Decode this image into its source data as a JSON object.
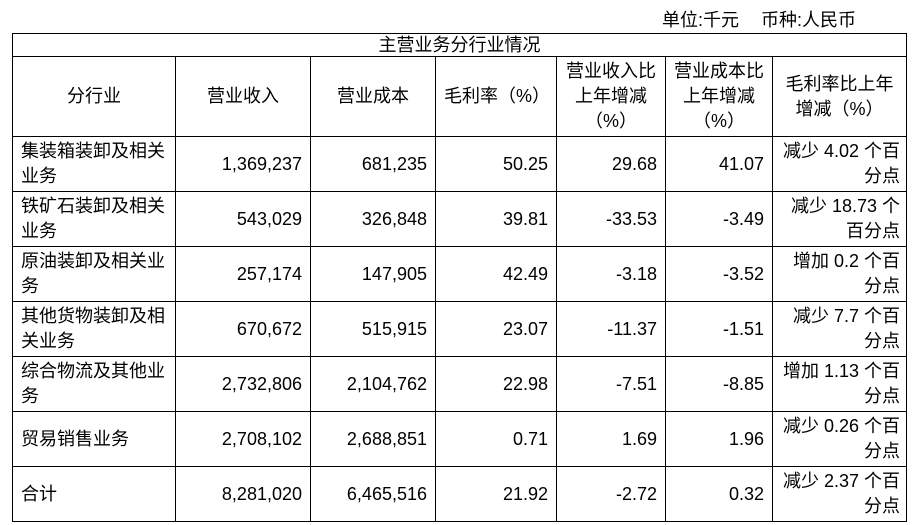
{
  "header": {
    "unit": "单位:千元",
    "currency": "币种:人民币"
  },
  "table": {
    "title": "主营业务分行业情况",
    "columns": [
      "分行业",
      "营业收入",
      "营业成本",
      "毛利率（%）",
      "营业收入比上年增减（%）",
      "营业成本比上年增减（%）",
      "毛利率比上年增减（%）"
    ],
    "rows": [
      [
        "集装箱装卸及相关业务",
        "1,369,237",
        "681,235",
        "50.25",
        "29.68",
        "41.07",
        "减少 4.02 个百分点"
      ],
      [
        "铁矿石装卸及相关业务",
        "543,029",
        "326,848",
        "39.81",
        "-33.53",
        "-3.49",
        "减少 18.73 个百分点"
      ],
      [
        "原油装卸及相关业务",
        "257,174",
        "147,905",
        "42.49",
        "-3.18",
        "-3.52",
        "增加 0.2 个百分点"
      ],
      [
        "其他货物装卸及相关业务",
        "670,672",
        "515,915",
        "23.07",
        "-11.37",
        "-1.51",
        "减少 7.7 个百分点"
      ],
      [
        "综合物流及其他业务",
        "2,732,806",
        "2,104,762",
        "22.98",
        "-7.51",
        "-8.85",
        "增加 1.13 个百分点"
      ],
      [
        "贸易销售业务",
        "2,708,102",
        "2,688,851",
        "0.71",
        "1.69",
        "1.96",
        "减少 0.26 个百分点"
      ],
      [
        "合计",
        "8,281,020",
        "6,465,516",
        "21.92",
        "-2.72",
        "0.32",
        "减少 2.37 个百分点"
      ]
    ]
  }
}
